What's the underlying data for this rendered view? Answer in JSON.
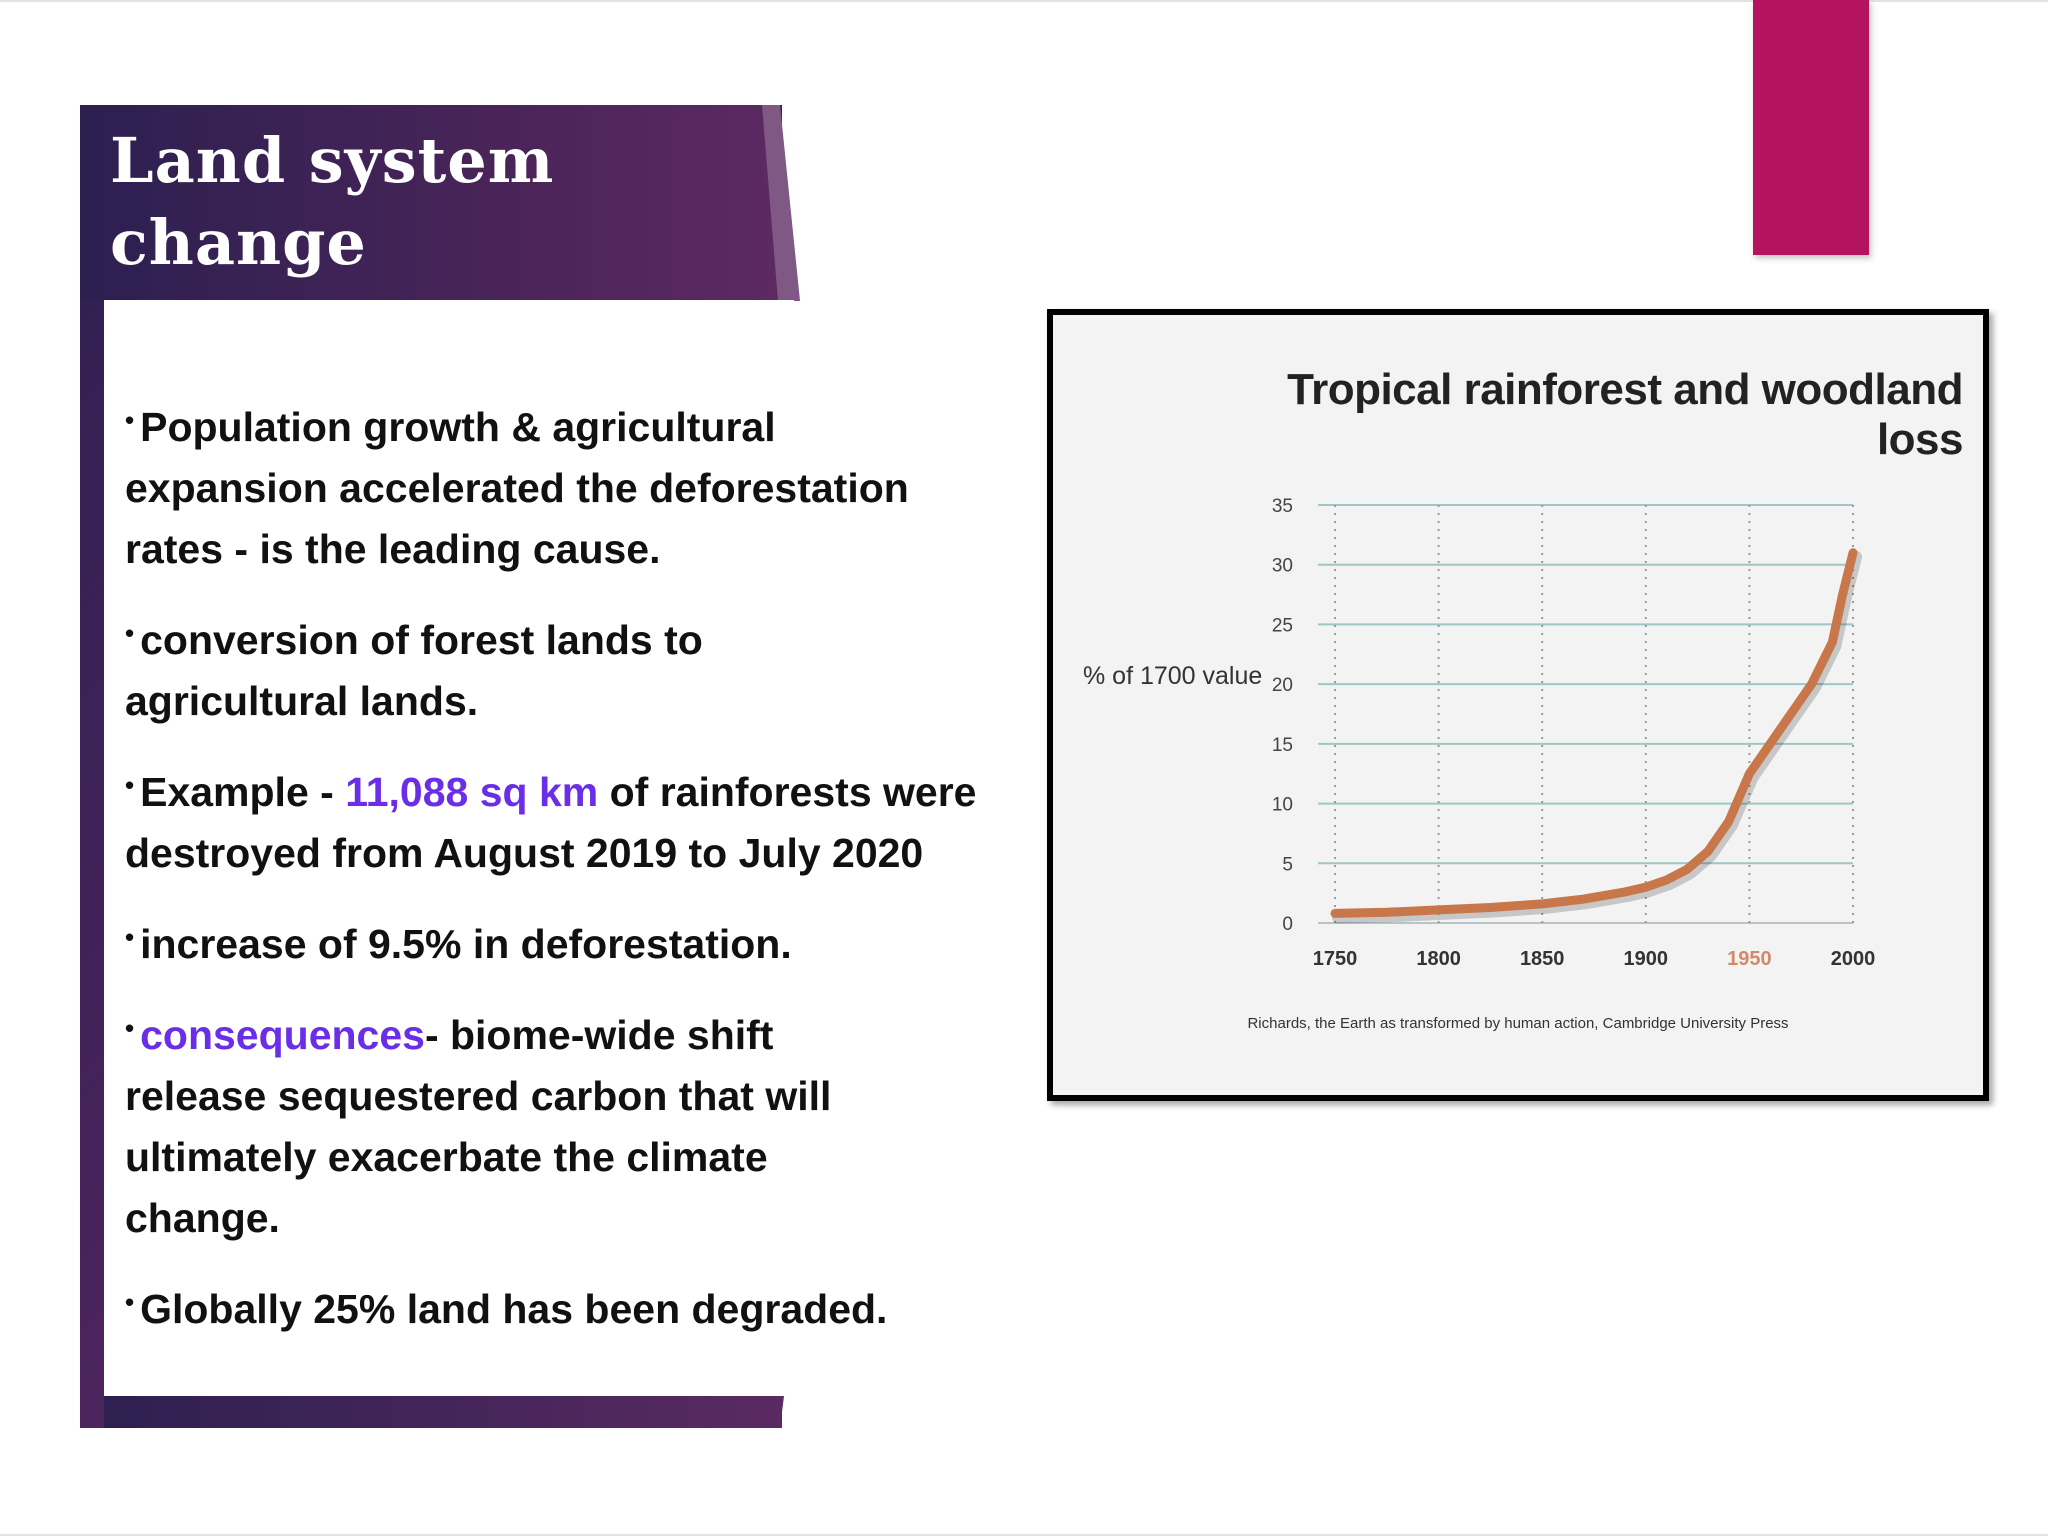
{
  "slide": {
    "title_line1": "Land system",
    "title_line2": "change",
    "bullets": [
      {
        "text": "Population growth  & agricultural expansion accelerated the deforestation  rates - is the leading cause."
      },
      {
        "text": "conversion of forest lands to agricultural lands."
      },
      {
        "pre": "Example - ",
        "highlight": "11,088 sq km",
        "post": " of rainforests were destroyed from August 2019 to July 2020"
      },
      {
        "text": "increase of 9.5% in deforestation."
      },
      {
        "highlight": "consequences",
        "post": "-  biome-wide shift release sequestered carbon that will ultimately exacerbate the climate change."
      },
      {
        "text": "Globally 25% land has been degraded."
      }
    ]
  },
  "colors": {
    "accent_bar": "#b3135f",
    "frame_dark": "#2e2050",
    "frame_light": "#5b2a63",
    "highlight": "#6a2ee8",
    "curve": "#c8774a"
  },
  "chart_data": {
    "type": "line",
    "title": "Tropical rainforest and woodland loss",
    "ylabel": "% of 1700 value",
    "xlabel": "",
    "credit": "Richards, the Earth as transformed by human action, Cambridge University Press",
    "xlim": [
      1750,
      2000
    ],
    "ylim": [
      0,
      35
    ],
    "x_ticks": [
      "1750",
      "1800",
      "1850",
      "1900",
      "1950",
      "2000"
    ],
    "highlight_x_tick": "1950",
    "y_ticks": [
      "0",
      "5",
      "10",
      "15",
      "20",
      "25",
      "30",
      "35"
    ],
    "grid": "horizontal solid lines, vertical dotted lines",
    "series": [
      {
        "x": [
          1750,
          1775,
          1800,
          1825,
          1850,
          1870,
          1890,
          1900,
          1910,
          1920,
          1930,
          1940,
          1950,
          1960,
          1970,
          1980,
          1990,
          1995,
          2000
        ],
        "values": [
          0.8,
          0.9,
          1.1,
          1.3,
          1.6,
          2.0,
          2.6,
          3.0,
          3.6,
          4.5,
          6.0,
          8.5,
          12.5,
          15.0,
          17.5,
          20.0,
          23.5,
          27.5,
          31.0
        ]
      }
    ]
  }
}
